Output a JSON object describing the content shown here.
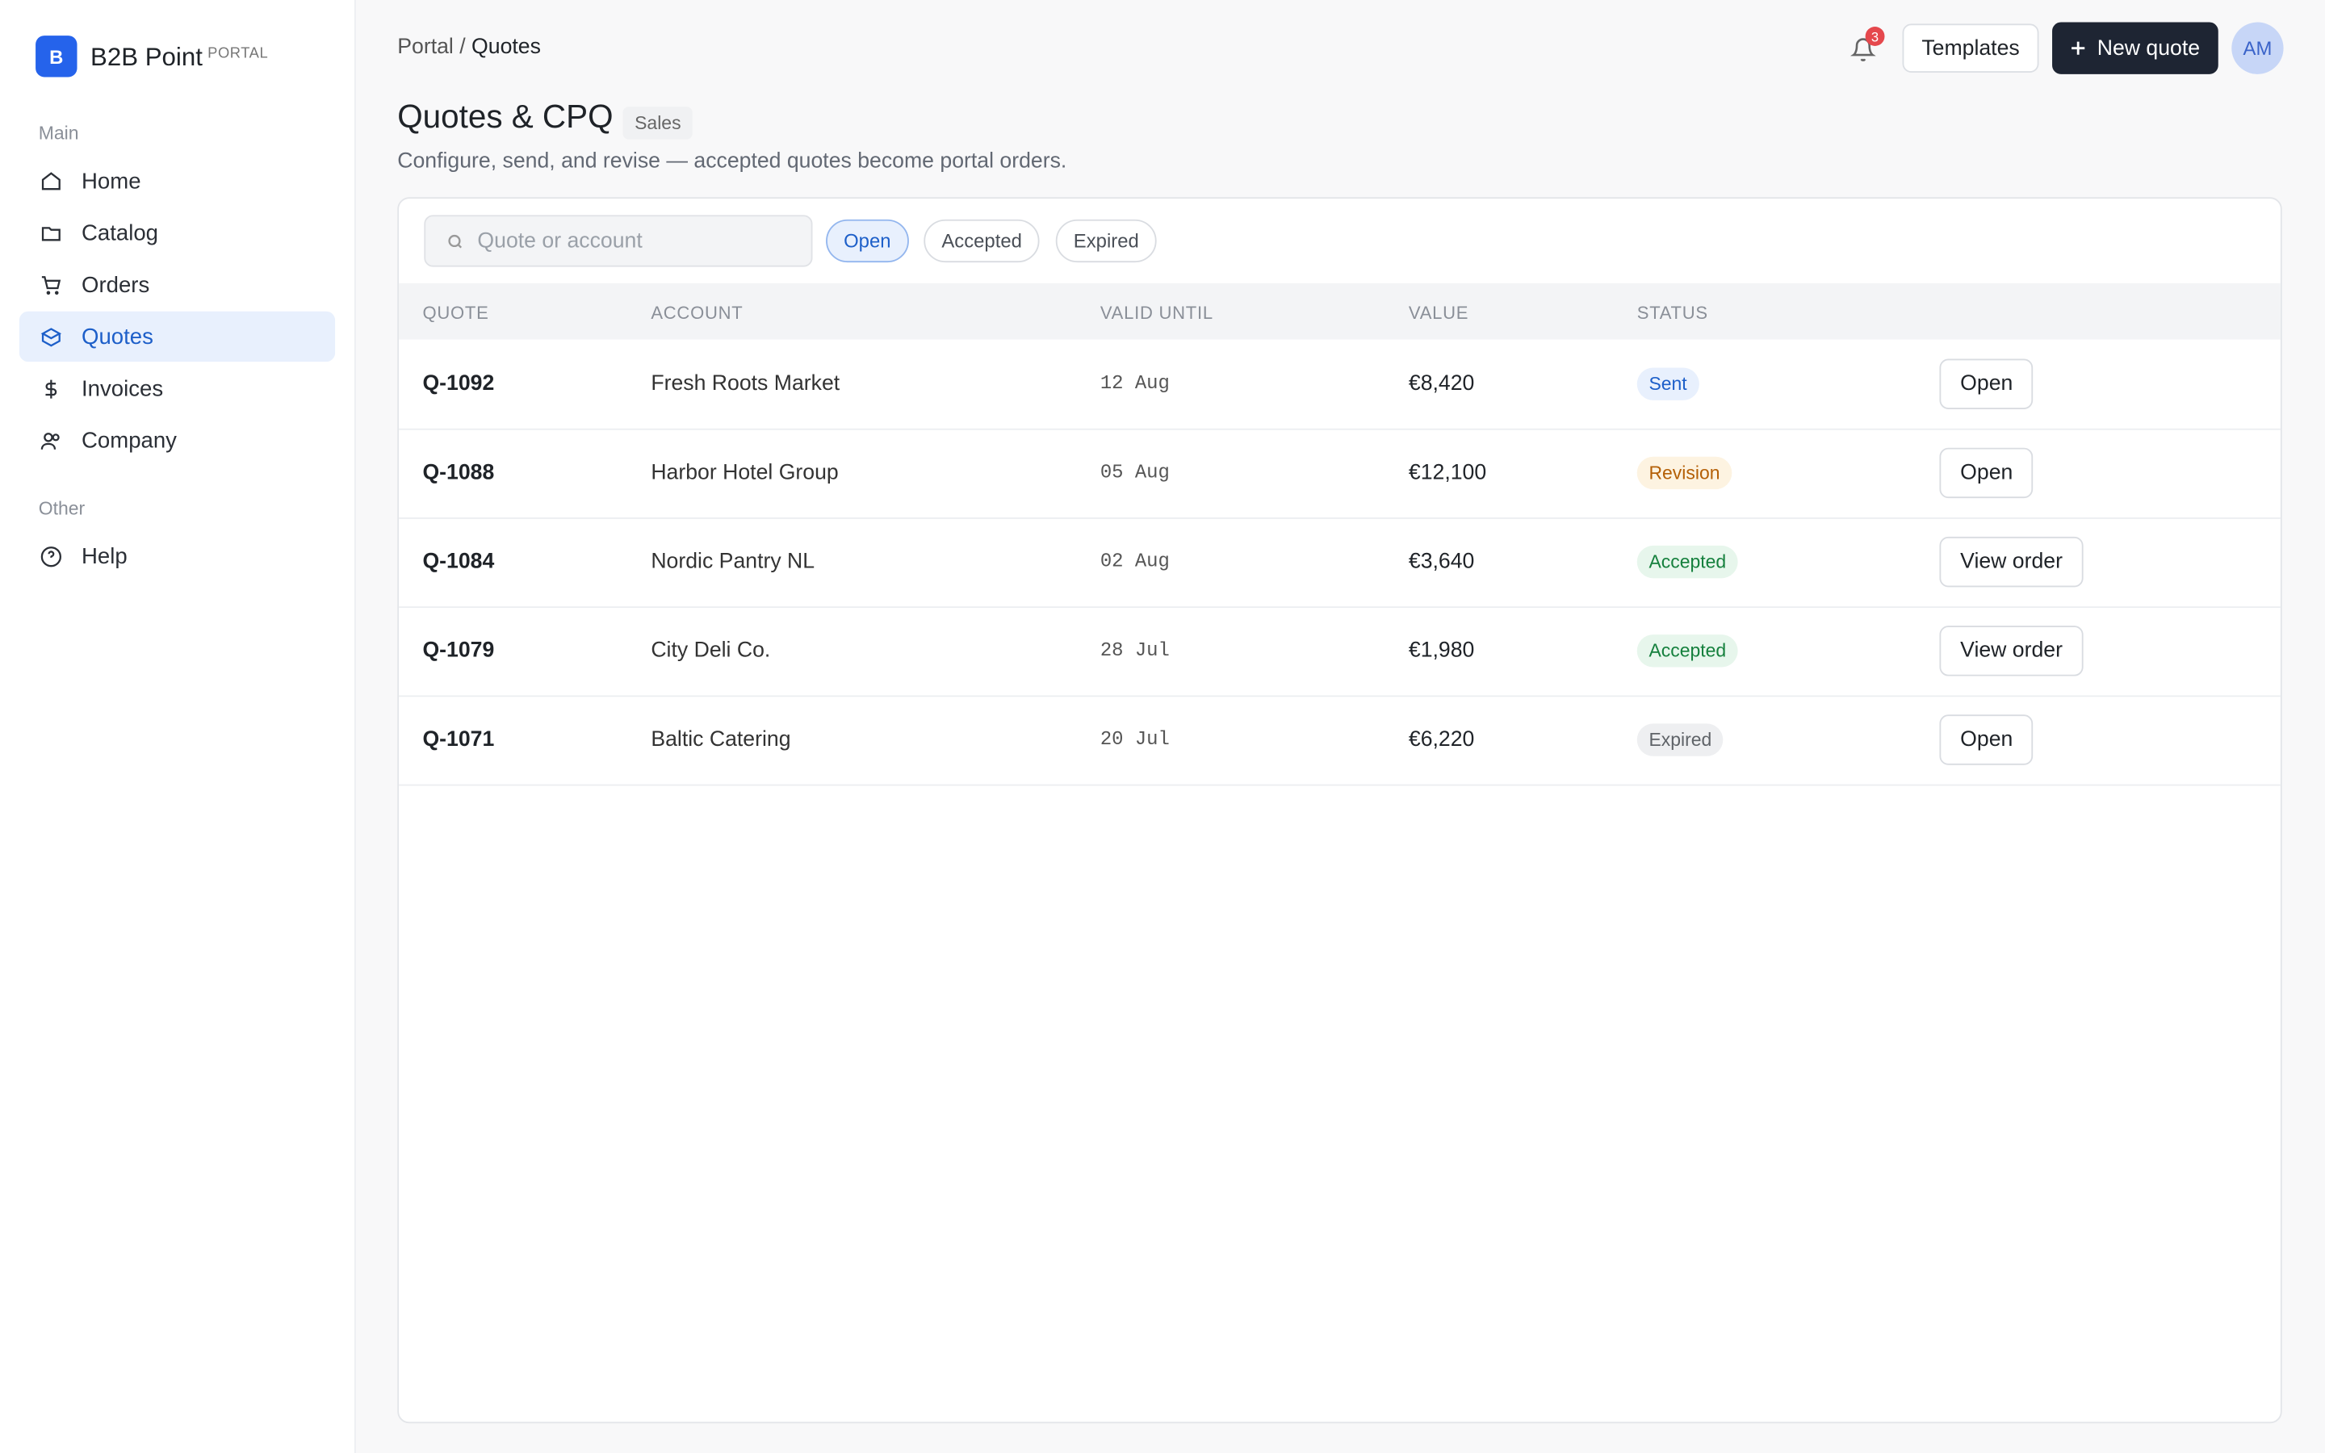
{
  "sidebar": {
    "brand": {
      "logo": "B",
      "name": "B2B Point",
      "tag": "PORTAL"
    },
    "sections": [
      {
        "title": "Main",
        "items": [
          {
            "label": "Home"
          },
          {
            "label": "Catalog"
          },
          {
            "label": "Orders"
          },
          {
            "label": "Quotes",
            "active": true
          },
          {
            "label": "Invoices"
          },
          {
            "label": "Company"
          }
        ]
      },
      {
        "title": "Other",
        "items": [
          {
            "label": "Help"
          }
        ]
      }
    ]
  },
  "header": {
    "breadcrumb": {
      "items": [
        "Portal",
        "Quotes"
      ],
      "separator": "/"
    },
    "notifications": "3",
    "templates_button": "Templates",
    "new_button": "New quote",
    "avatar": "AM"
  },
  "page": {
    "title": "Quotes & CPQ",
    "badge": "Sales",
    "subtitle": "Configure, send, and revise — accepted quotes become portal orders."
  },
  "toolbar": {
    "search_placeholder": "Quote or account",
    "filters": [
      {
        "label": "Open",
        "active": true
      },
      {
        "label": "Accepted"
      },
      {
        "label": "Expired"
      }
    ]
  },
  "table": {
    "columns": [
      "QUOTE",
      "ACCOUNT",
      "VALID UNTIL",
      "VALUE",
      "STATUS"
    ],
    "rows": [
      {
        "quote": "Q-1092",
        "account": "Fresh Roots Market",
        "valid_until": "12 Aug",
        "value": "€8,420",
        "status": {
          "label": "Sent",
          "color": "#1d5fc9",
          "background": "#e8f0fd"
        },
        "action": "Open"
      },
      {
        "quote": "Q-1088",
        "account": "Harbor Hotel Group",
        "valid_until": "05 Aug",
        "value": "€12,100",
        "status": {
          "label": "Revision",
          "color": "#b45f06",
          "background": "#fdf3e1"
        },
        "action": "Open"
      },
      {
        "quote": "Q-1084",
        "account": "Nordic Pantry NL",
        "valid_until": "02 Aug",
        "value": "€3,640",
        "status": {
          "label": "Accepted",
          "color": "#15803d",
          "background": "#e7f6ec"
        },
        "action": "View order"
      },
      {
        "quote": "Q-1079",
        "account": "City Deli Co.",
        "valid_until": "28 Jul",
        "value": "€1,980",
        "status": {
          "label": "Accepted",
          "color": "#15803d",
          "background": "#e7f6ec"
        },
        "action": "View order"
      },
      {
        "quote": "Q-1071",
        "account": "Baltic Catering",
        "valid_until": "20 Jul",
        "value": "€6,220",
        "status": {
          "label": "Expired",
          "color": "#5f6368",
          "background": "#eeeff1"
        },
        "action": "Open"
      }
    ]
  }
}
